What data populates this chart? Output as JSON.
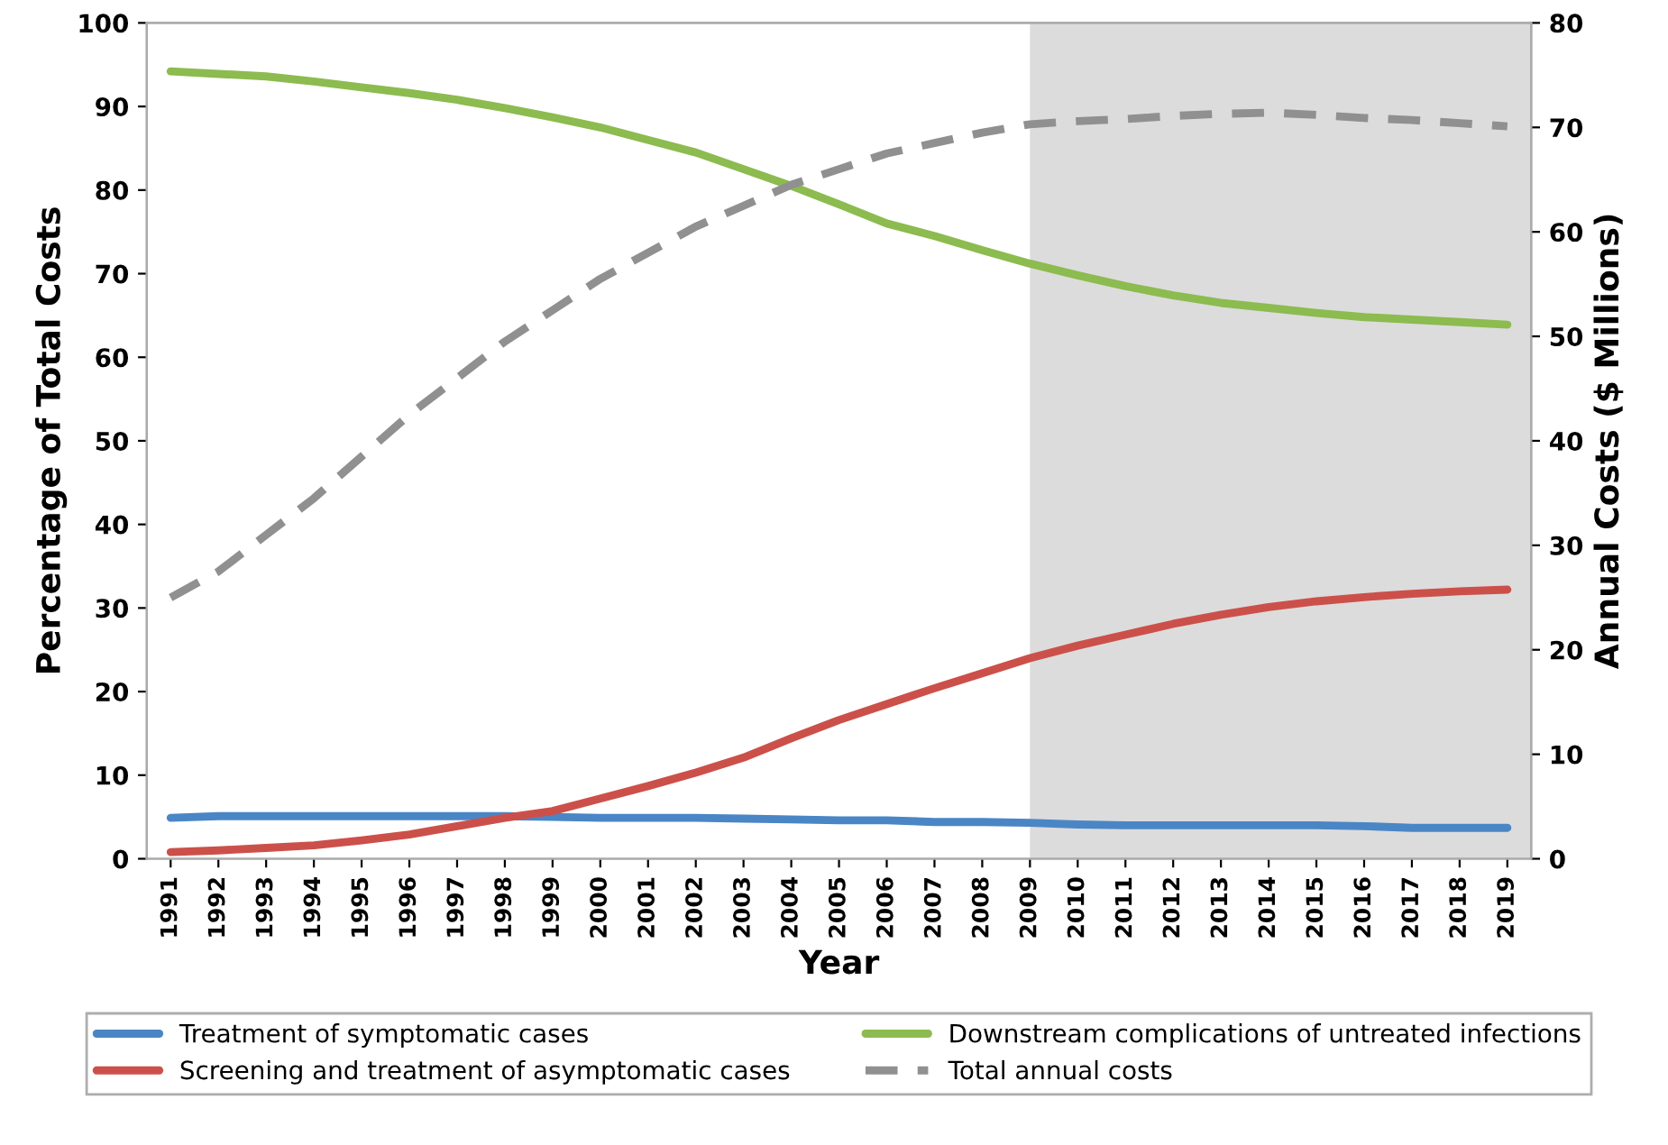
{
  "chart_data": {
    "type": "line",
    "xlabel": "Year",
    "ylabel": "Percentage of Total Costs",
    "y2label": "Annual Costs ($ Millions)",
    "categories": [
      "1991",
      "1992",
      "1993",
      "1994",
      "1995",
      "1996",
      "1997",
      "1998",
      "1999",
      "2000",
      "2001",
      "2002",
      "2003",
      "2004",
      "2005",
      "2006",
      "2007",
      "2008",
      "2009",
      "2010",
      "2011",
      "2012",
      "2013",
      "2014",
      "2015",
      "2016",
      "2017",
      "2018",
      "2019"
    ],
    "series": [
      {
        "name": "Treatment of symptomatic cases",
        "color": "#4a86c5",
        "line_style": "solid",
        "values": [
          4.9,
          5.1,
          5.1,
          5.1,
          5.1,
          5.1,
          5.1,
          5.1,
          5.0,
          4.9,
          4.9,
          4.9,
          4.8,
          4.7,
          4.6,
          4.6,
          4.4,
          4.4,
          4.3,
          4.1,
          4.0,
          4.0,
          4.0,
          4.0,
          4.0,
          3.9,
          3.7,
          3.7,
          3.7
        ]
      },
      {
        "name": "Screening and treatment of asymptomatic cases",
        "color": "#cc504a",
        "line_style": "solid",
        "values": [
          0.8,
          1.0,
          1.3,
          1.6,
          2.2,
          2.9,
          3.9,
          4.9,
          5.7,
          7.2,
          8.7,
          10.3,
          12.1,
          14.4,
          16.6,
          18.5,
          20.4,
          22.2,
          24.0,
          25.5,
          26.8,
          28.1,
          29.2,
          30.1,
          30.8,
          31.3,
          31.7,
          32.0,
          32.2
        ]
      },
      {
        "name": "Downstream complications of untreated infections",
        "color": "#8cbb4f",
        "line_style": "solid",
        "values": [
          94.2,
          93.9,
          93.6,
          93.0,
          92.3,
          91.6,
          90.8,
          89.8,
          88.7,
          87.5,
          86.0,
          84.5,
          82.5,
          80.5,
          78.3,
          76.0,
          74.5,
          72.8,
          71.2,
          69.8,
          68.5,
          67.4,
          66.5,
          65.9,
          65.3,
          64.8,
          64.5,
          64.2,
          63.9
        ]
      },
      {
        "name": "Total annual costs",
        "color": "#909090",
        "line_style": "dashed",
        "axis": "y2",
        "values": [
          25,
          27.5,
          31,
          34.5,
          38.5,
          42.5,
          46,
          49.5,
          52.5,
          55.5,
          58,
          60.5,
          62.5,
          64.5,
          66,
          67.5,
          68.5,
          69.5,
          70.3,
          70.6,
          70.8,
          71.1,
          71.3,
          71.4,
          71.2,
          70.9,
          70.7,
          70.4,
          70.1
        ]
      }
    ],
    "ylim": [
      0,
      100
    ],
    "yticks": [
      0,
      10,
      20,
      30,
      40,
      50,
      60,
      70,
      80,
      90,
      100
    ],
    "y2lim": [
      0,
      80
    ],
    "y2ticks": [
      0,
      10,
      20,
      30,
      40,
      50,
      60,
      70,
      80
    ],
    "bands": [
      {
        "axis": "x",
        "from": "2009",
        "to": "2019",
        "color": "#dcdcdc"
      }
    ],
    "legend": "bottom",
    "grid": false
  }
}
